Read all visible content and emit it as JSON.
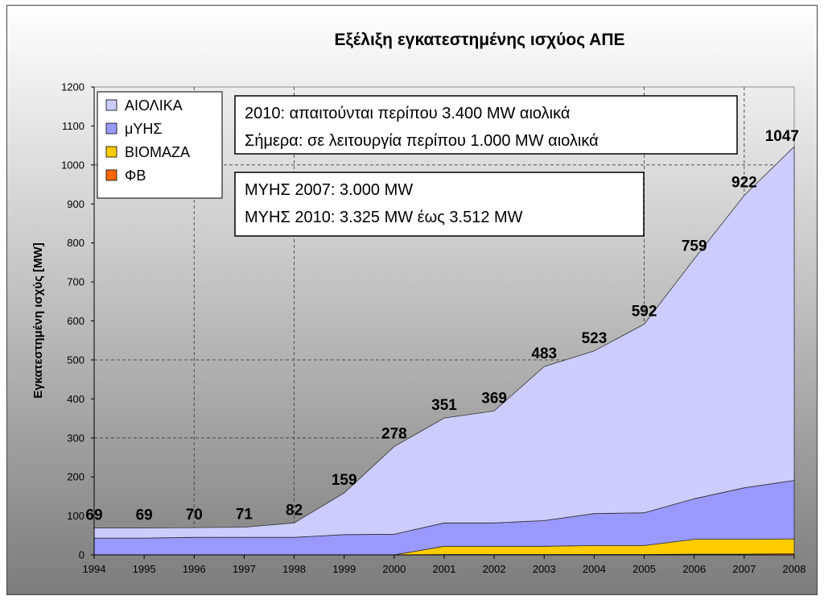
{
  "chart_data": {
    "type": "area",
    "title": "Εξέλιξη εγκατεστημένης ισχύος ΑΠΕ",
    "ylabel": "Εγκατεστημένη ισχύς [MW]",
    "xlabel": "",
    "ylim": [
      0,
      1200
    ],
    "yticks": [
      0,
      100,
      200,
      300,
      400,
      500,
      600,
      700,
      800,
      900,
      1000,
      1100,
      1200
    ],
    "categories": [
      "1994",
      "1995",
      "1996",
      "1997",
      "1998",
      "1999",
      "2000",
      "2001",
      "2002",
      "2003",
      "2004",
      "2005",
      "2006",
      "2007",
      "2008"
    ],
    "stacked": true,
    "grid": "dashed",
    "legend": "top-left",
    "series": [
      {
        "name": "ΦΒ",
        "color": "#ff6600",
        "values": [
          0,
          0,
          0,
          0,
          0,
          0,
          0,
          1,
          1,
          1,
          1,
          1,
          2,
          2,
          3
        ]
      },
      {
        "name": "ΒΙΟΜΑΖΑ",
        "color": "#ffcc00",
        "values": [
          0,
          0,
          0,
          0,
          0,
          0,
          0,
          21,
          21,
          21,
          23,
          23,
          38,
          38,
          38
        ]
      },
      {
        "name": "μΥΗΣ",
        "color": "#9999ff",
        "values": [
          43,
          43,
          45,
          45,
          45,
          52,
          53,
          60,
          60,
          66,
          82,
          84,
          104,
          132,
          150
        ]
      },
      {
        "name": "ΑΙΟΛΙΚΑ",
        "color": "#ccccff",
        "values": [
          26,
          26,
          25,
          26,
          37,
          107,
          225,
          269,
          287,
          395,
          417,
          484,
          615,
          750,
          856
        ]
      }
    ],
    "total_labels": [
      "69",
      "69",
      "70",
      "71",
      "82",
      "159",
      "278",
      "351",
      "369",
      "483",
      "523",
      "592",
      "759",
      "922",
      "1047"
    ],
    "annotations": [
      {
        "lines": [
          "2010: απαιτούνται περίπου 3.400 MW αιολικά",
          "Σήμερα: σε λειτουργία περίπου 1.000 MW αιολικά"
        ]
      },
      {
        "lines": [
          "ΜΥΗΣ 2007: 3.000 MW",
          "ΜΥΗΣ 2010: 3.325 MW έως 3.512 MW"
        ]
      }
    ]
  }
}
